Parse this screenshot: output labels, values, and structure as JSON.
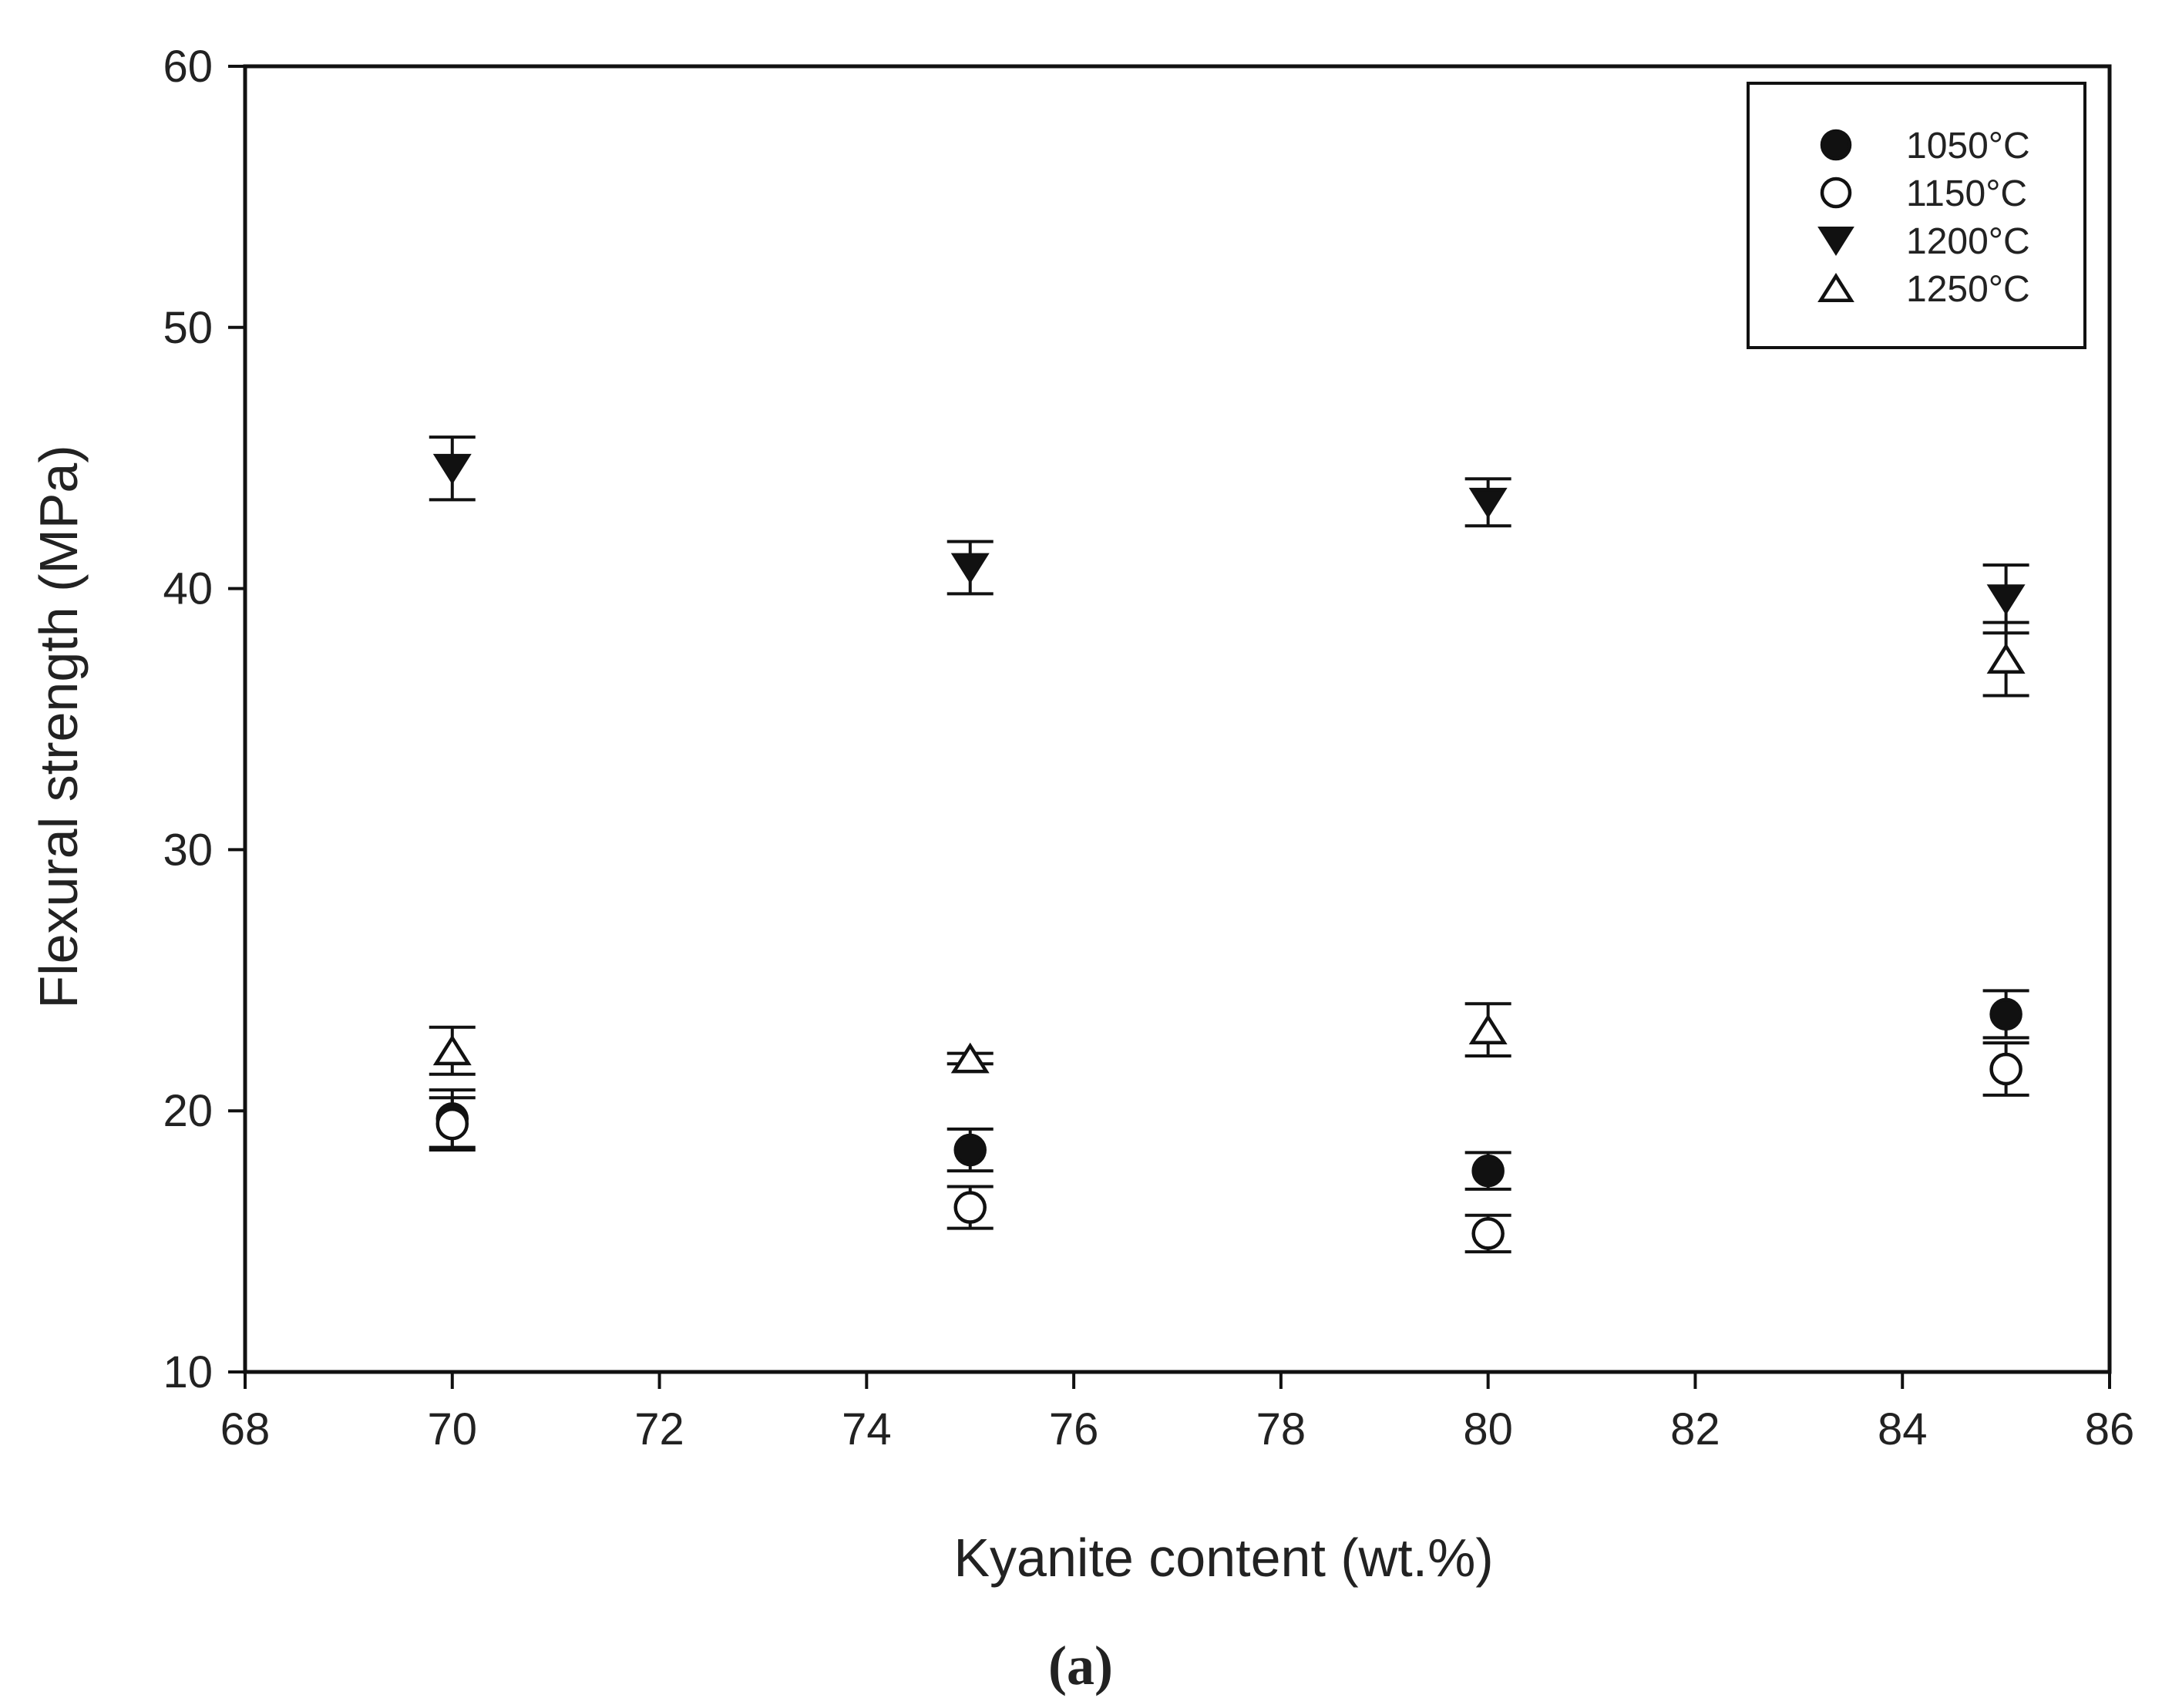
{
  "chart_data": {
    "type": "scatter",
    "title": "",
    "xlabel": "Kyanite content (wt.%)",
    "ylabel": "Flexural strength (MPa)",
    "xlim": [
      68,
      86
    ],
    "ylim": [
      10,
      60
    ],
    "xticks": [
      "68",
      "70",
      "72",
      "74",
      "76",
      "78",
      "80",
      "82",
      "84",
      "86"
    ],
    "yticks": [
      "10",
      "20",
      "30",
      "40",
      "50",
      "60"
    ],
    "grid": false,
    "legend_position": "top-right",
    "error_bars": true,
    "series": [
      {
        "name": "1050°C",
        "marker": "filled-circle",
        "x": [
          70,
          75,
          80,
          85
        ],
        "y": [
          19.7,
          18.5,
          17.7,
          23.7
        ],
        "err": [
          1.1,
          0.8,
          0.7,
          0.9
        ]
      },
      {
        "name": "1150°C",
        "marker": "open-circle",
        "x": [
          70,
          75,
          80,
          85
        ],
        "y": [
          19.5,
          16.3,
          15.3,
          21.6
        ],
        "err": [
          1.0,
          0.8,
          0.7,
          1.0
        ]
      },
      {
        "name": "1200°C",
        "marker": "filled-triangle-down",
        "x": [
          70,
          75,
          80,
          85
        ],
        "y": [
          44.6,
          40.8,
          43.3,
          39.6
        ],
        "err": [
          1.2,
          1.0,
          0.9,
          1.3
        ]
      },
      {
        "name": "1250°C",
        "marker": "open-triangle-up",
        "x": [
          70,
          75,
          80,
          85
        ],
        "y": [
          22.3,
          22.0,
          23.1,
          37.3
        ],
        "err": [
          0.9,
          0.2,
          1.0,
          1.4
        ]
      }
    ]
  },
  "caption": "(a)"
}
